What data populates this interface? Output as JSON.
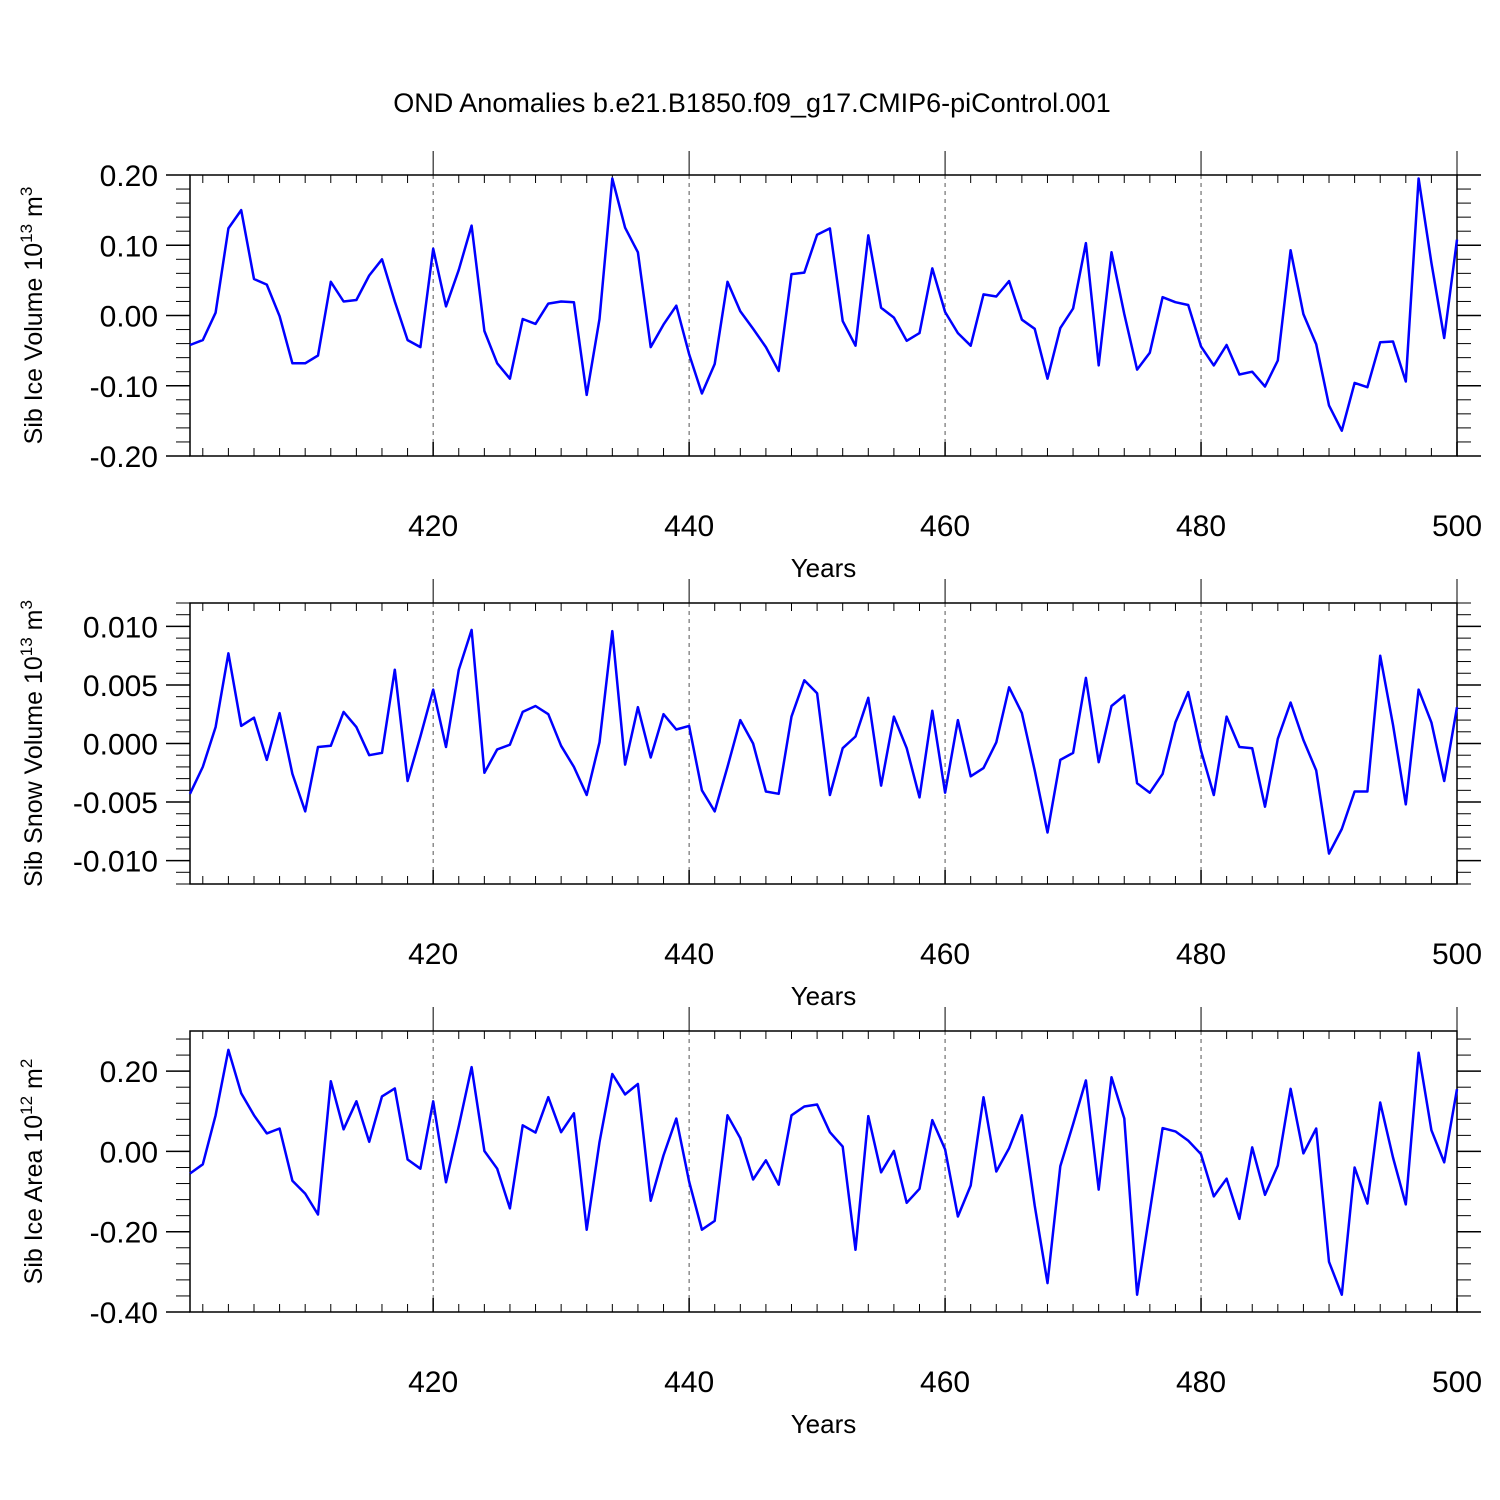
{
  "figure_title": "OND Anomalies b.e21.B1850.f09_g17.CMIP6-piControl.001",
  "line_color": "#0000ff",
  "chart_data": [
    {
      "type": "line",
      "title": "OND Anomalies b.e21.B1850.f09_g17.CMIP6-piControl.001",
      "xlabel": "Years",
      "ylabel_main": "Sib Ice Volume 10",
      "ylabel_exp": "13",
      "ylabel_unit": " m",
      "ylabel_unit_exp": "3",
      "xlim": [
        401,
        500
      ],
      "ylim": [
        -0.2,
        0.2
      ],
      "xticks": [
        420,
        440,
        460,
        480,
        500
      ],
      "xtick_labels": [
        "420",
        "440",
        "460",
        "480",
        "500"
      ],
      "yticks": [
        -0.2,
        -0.1,
        0.0,
        0.1,
        0.2
      ],
      "ytick_labels": [
        "-0.20",
        "-0.10",
        "0.00",
        "0.10",
        "0.20"
      ],
      "grid": "vertical dashed at major x ticks",
      "series": [
        {
          "name": "Sib Ice Volume",
          "x_start": 401,
          "values": [
            -0.042,
            -0.035,
            0.004,
            0.124,
            0.15,
            0.052,
            0.044,
            -0.001,
            -0.068,
            -0.068,
            -0.057,
            0.048,
            0.02,
            0.022,
            0.057,
            0.08,
            0.02,
            -0.035,
            -0.045,
            0.095,
            0.013,
            0.065,
            0.128,
            -0.022,
            -0.068,
            -0.09,
            -0.005,
            -0.012,
            0.017,
            0.02,
            0.019,
            -0.113,
            -0.005,
            0.195,
            0.125,
            0.09,
            -0.045,
            -0.013,
            0.014,
            -0.055,
            -0.111,
            -0.069,
            0.048,
            0.006,
            -0.019,
            -0.045,
            -0.079,
            0.059,
            0.061,
            0.115,
            0.124,
            -0.008,
            -0.043,
            0.114,
            0.011,
            -0.003,
            -0.036,
            -0.025,
            0.067,
            0.005,
            -0.025,
            -0.043,
            0.03,
            0.027,
            0.049,
            -0.006,
            -0.019,
            -0.09,
            -0.018,
            0.01,
            0.103,
            -0.071,
            0.09,
            0.002,
            -0.077,
            -0.053,
            0.026,
            0.019,
            0.015,
            -0.044,
            -0.071,
            -0.042,
            -0.084,
            -0.08,
            -0.101,
            -0.064,
            0.093,
            0.002,
            -0.041,
            -0.128,
            -0.164,
            -0.096,
            -0.102,
            -0.038,
            -0.037,
            -0.094,
            0.195,
            0.075,
            -0.032,
            0.108
          ]
        }
      ]
    },
    {
      "type": "line",
      "xlabel": "Years",
      "ylabel_main": "Sib Snow Volume 10",
      "ylabel_exp": "13",
      "ylabel_unit": " m",
      "ylabel_unit_exp": "3",
      "xlim": [
        401,
        500
      ],
      "ylim": [
        -0.012,
        0.012
      ],
      "xticks": [
        420,
        440,
        460,
        480,
        500
      ],
      "xtick_labels": [
        "420",
        "440",
        "460",
        "480",
        "500"
      ],
      "yticks": [
        -0.01,
        -0.005,
        0.0,
        0.005,
        0.01
      ],
      "ytick_labels": [
        "-0.010",
        "-0.005",
        "0.000",
        "0.005",
        "0.010"
      ],
      "grid": "vertical dashed at major x ticks",
      "series": [
        {
          "name": "Sib Snow Volume",
          "x_start": 401,
          "values": [
            -0.0043,
            -0.002,
            0.0014,
            0.0077,
            0.0015,
            0.0022,
            -0.0014,
            0.0026,
            -0.0026,
            -0.0058,
            -0.0003,
            -0.0002,
            0.0027,
            0.0014,
            -0.001,
            -0.0008,
            0.0063,
            -0.0032,
            0.0006,
            0.0046,
            -0.0003,
            0.0063,
            0.0097,
            -0.0025,
            -0.0005,
            -0.0001,
            0.0027,
            0.0032,
            0.0025,
            -0.0002,
            -0.002,
            -0.0044,
            0.0001,
            0.0096,
            -0.0018,
            0.0031,
            -0.0012,
            0.0025,
            0.0012,
            0.0015,
            -0.004,
            -0.0058,
            -0.002,
            0.002,
            0.0,
            -0.0041,
            -0.0043,
            0.0023,
            0.0054,
            0.0043,
            -0.0044,
            -0.0004,
            0.0006,
            0.0039,
            -0.0036,
            0.0023,
            -0.0004,
            -0.0046,
            0.0028,
            -0.0042,
            0.002,
            -0.0028,
            -0.0021,
            0.0001,
            0.0048,
            0.0026,
            -0.0023,
            -0.0076,
            -0.0014,
            -0.0008,
            0.0056,
            -0.0016,
            0.0032,
            0.0041,
            -0.0034,
            -0.0042,
            -0.0026,
            0.0018,
            0.0044,
            -0.0006,
            -0.0044,
            0.0023,
            -0.0003,
            -0.0004,
            -0.0054,
            0.0004,
            0.0035,
            0.0003,
            -0.0023,
            -0.0094,
            -0.0073,
            -0.0041,
            -0.0041,
            0.0075,
            0.0016,
            -0.0052,
            0.0046,
            0.0018,
            -0.0032,
            0.0031
          ]
        }
      ]
    },
    {
      "type": "line",
      "xlabel": "Years",
      "ylabel_main": "Sib Ice Area 10",
      "ylabel_exp": "12",
      "ylabel_unit": " m",
      "ylabel_unit_exp": "2",
      "xlim": [
        401,
        500
      ],
      "ylim": [
        -0.4,
        0.3
      ],
      "xticks": [
        420,
        440,
        460,
        480,
        500
      ],
      "xtick_labels": [
        "420",
        "440",
        "460",
        "480",
        "500"
      ],
      "yticks": [
        -0.4,
        -0.2,
        0.0,
        0.2
      ],
      "ytick_labels": [
        "-0.40",
        "-0.20",
        "0.00",
        "0.20"
      ],
      "grid": "vertical dashed at major x ticks",
      "series": [
        {
          "name": "Sib Ice Area",
          "x_start": 401,
          "values": [
            -0.055,
            -0.032,
            0.09,
            0.253,
            0.145,
            0.09,
            0.045,
            0.057,
            -0.073,
            -0.105,
            -0.157,
            0.175,
            0.055,
            0.125,
            0.024,
            0.137,
            0.157,
            -0.02,
            -0.043,
            0.125,
            -0.077,
            0.063,
            0.21,
            0.001,
            -0.043,
            -0.142,
            0.065,
            0.047,
            0.135,
            0.048,
            0.095,
            -0.195,
            0.023,
            0.193,
            0.142,
            0.168,
            -0.123,
            -0.01,
            0.082,
            -0.075,
            -0.195,
            -0.173,
            0.09,
            0.033,
            -0.07,
            -0.022,
            -0.083,
            0.09,
            0.112,
            0.117,
            0.048,
            0.012,
            -0.245,
            0.088,
            -0.052,
            0.001,
            -0.128,
            -0.093,
            0.078,
            0.005,
            -0.162,
            -0.085,
            0.135,
            -0.05,
            0.008,
            0.09,
            -0.135,
            -0.328,
            -0.037,
            0.068,
            0.177,
            -0.095,
            0.185,
            0.082,
            -0.357,
            -0.15,
            0.058,
            0.05,
            0.027,
            -0.007,
            -0.112,
            -0.068,
            -0.168,
            0.01,
            -0.108,
            -0.035,
            0.156,
            -0.005,
            0.057,
            -0.275,
            -0.357,
            -0.04,
            -0.13,
            0.122,
            -0.015,
            -0.132,
            0.246,
            0.053,
            -0.027,
            0.155
          ]
        }
      ]
    }
  ]
}
